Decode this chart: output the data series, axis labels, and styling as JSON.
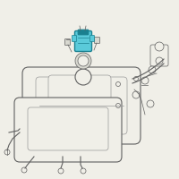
{
  "bg_color": "#f0efe8",
  "line_color": "#999999",
  "dark_line": "#606060",
  "highlight_color": "#3ab5c8",
  "highlight_dark": "#1a8090",
  "highlight_fill": "#5acada",
  "gray_fill": "#d8d8d0",
  "white_fill": "#f0efe8",
  "figsize": [
    2.0,
    2.0
  ],
  "dpi": 100
}
